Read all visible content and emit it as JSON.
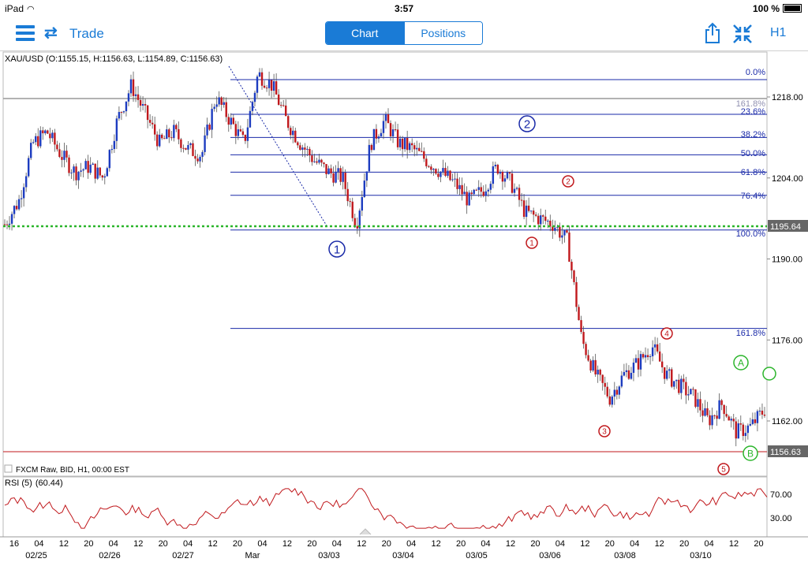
{
  "status": {
    "device": "iPad",
    "time": "3:57",
    "battery": "100 %"
  },
  "toolbar": {
    "trade_label": "Trade",
    "tab_chart": "Chart",
    "tab_positions": "Positions",
    "timeframe": "H1"
  },
  "chart": {
    "info": "XAU/USD (O:1155.15, H:1156.63, L:1154.89, C:1156.63)",
    "source": "FXCM Raw, BID, H1, 00:00 EST",
    "rsi_label": "RSI (5)",
    "rsi_value": "(60.44)",
    "price_labels": [
      "1218.00",
      "1204.00",
      "1190.00",
      "1176.00",
      "1162.00"
    ],
    "rsi_axis": [
      "70.00",
      "30.00"
    ],
    "price_marker_green": "1195.64",
    "price_marker_red": "1156.63",
    "fib_labels": [
      "0.0%",
      "161.8%",
      "23.6%",
      "38.2%",
      "50.0%",
      "61.8%",
      "76.4%",
      "100.0%",
      "161.8%"
    ],
    "wave_labels": {
      "w1": "1",
      "w2": "2",
      "r1": "1",
      "r2": "2",
      "r3": "3",
      "r4": "4",
      "r5": "5",
      "A": "A",
      "B": "B"
    },
    "time_ticks": [
      "16",
      "04",
      "12",
      "20",
      "04",
      "12",
      "20",
      "04",
      "12",
      "20",
      "04",
      "12",
      "20",
      "04",
      "12",
      "20",
      "04",
      "12",
      "20",
      "04",
      "12",
      "20",
      "04",
      "12",
      "20",
      "04",
      "12",
      "20",
      "04",
      "12",
      "20"
    ],
    "date_labels": [
      "02/25",
      "02/26",
      "02/27",
      "Mar",
      "03/03",
      "03/04",
      "03/05",
      "03/06",
      "03/08",
      "03/10"
    ]
  },
  "chart_data": {
    "type": "candlestick",
    "symbol": "XAU/USD",
    "yrange": [
      1150,
      1225
    ],
    "y_ticks": [
      1218,
      1204,
      1190,
      1176,
      1162
    ],
    "close_path": [
      1196,
      1200,
      1210,
      1212,
      1208,
      1205,
      1206,
      1204,
      1214,
      1220,
      1215,
      1210,
      1212,
      1209,
      1208,
      1218,
      1214,
      1210,
      1222,
      1220,
      1214,
      1210,
      1207,
      1205,
      1204,
      1196,
      1210,
      1214,
      1210,
      1209,
      1207,
      1205,
      1203,
      1200,
      1202,
      1206,
      1203,
      1198,
      1197,
      1196,
      1193,
      1176,
      1170,
      1166,
      1170,
      1172,
      1175,
      1170,
      1168,
      1166,
      1162,
      1165,
      1160,
      1161,
      1164
    ],
    "fib_levels": [
      {
        "label": "0.0%",
        "price": 1221
      },
      {
        "label": "23.6%",
        "price": 1215
      },
      {
        "label": "38.2%",
        "price": 1211
      },
      {
        "label": "50.0%",
        "price": 1208
      },
      {
        "label": "61.8%",
        "price": 1205
      },
      {
        "label": "76.4%",
        "price": 1201
      },
      {
        "label": "100.0%",
        "price": 1195
      },
      {
        "label": "161.8%",
        "price": 1178
      }
    ],
    "rsi": {
      "period": 5,
      "last": 60.44,
      "levels": [
        70,
        30
      ]
    }
  },
  "colors": {
    "accent": "#1a7bd6",
    "up": "#1d3cc0",
    "down": "#c0181c",
    "green_line": "#2bb52b",
    "red_line": "#c0181c",
    "fib": "#1a2aa8"
  }
}
